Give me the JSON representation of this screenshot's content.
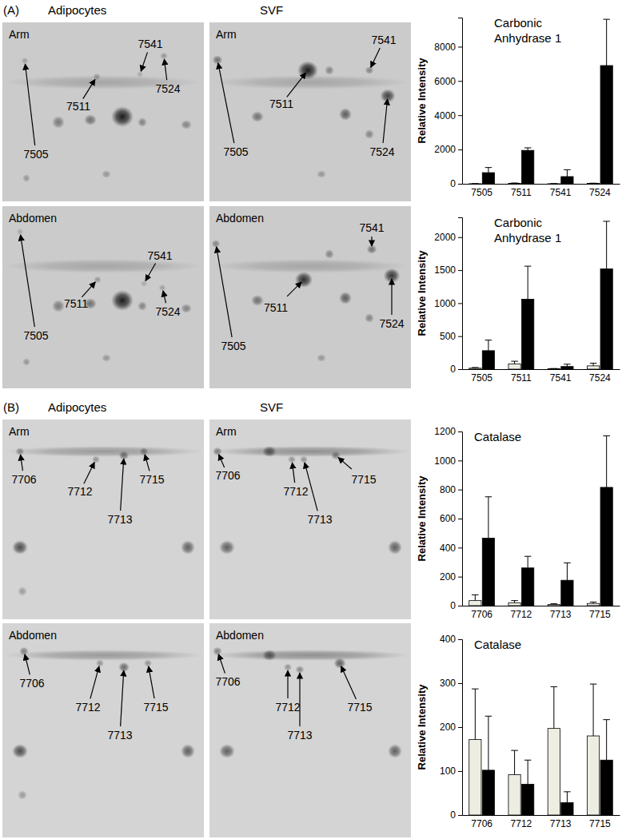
{
  "figure": {
    "panels": [
      {
        "label": "(A)",
        "columns": [
          "Adipocytes",
          "SVF"
        ],
        "rows": [
          "Arm",
          "Abdomen"
        ],
        "spots": [
          "7505",
          "7511",
          "7541",
          "7524"
        ]
      },
      {
        "label": "(B)",
        "columns": [
          "Adipocytes",
          "SVF"
        ],
        "rows": [
          "Arm",
          "Abdomen"
        ],
        "spots": [
          "7706",
          "7712",
          "7713",
          "7715"
        ]
      }
    ]
  },
  "chart_data": [
    {
      "type": "bar",
      "title": [
        "Carbonic",
        "Anhydrase 1"
      ],
      "y_label": "Relative Intensity",
      "categories": [
        "7505",
        "7511",
        "7541",
        "7524"
      ],
      "ylim": [
        0,
        9700
      ],
      "yticks": [
        0,
        2000,
        4000,
        6000,
        8000
      ],
      "series": [
        {
          "color": "#eeede2",
          "values": [
            5,
            30,
            5,
            20
          ],
          "errors": [
            5,
            15,
            5,
            15
          ]
        },
        {
          "color": "#000000",
          "values": [
            650,
            1950,
            420,
            6900
          ],
          "errors": [
            300,
            150,
            400,
            2700
          ]
        }
      ]
    },
    {
      "type": "bar",
      "title": [
        "Carbonic",
        "Anhydrase 1"
      ],
      "y_label": "Relative Intensity",
      "categories": [
        "7505",
        "7511",
        "7541",
        "7524"
      ],
      "ylim": [
        0,
        2300
      ],
      "yticks": [
        0,
        500,
        1000,
        1500,
        2000
      ],
      "series": [
        {
          "color": "#eeede2",
          "values": [
            15,
            80,
            5,
            50
          ],
          "errors": [
            10,
            40,
            5,
            40
          ]
        },
        {
          "color": "#000000",
          "values": [
            280,
            1060,
            40,
            1520
          ],
          "errors": [
            160,
            500,
            35,
            720
          ]
        }
      ]
    },
    {
      "type": "bar",
      "title": [
        "Catalase"
      ],
      "y_label": "Relative Intensity",
      "categories": [
        "7706",
        "7712",
        "7713",
        "7715"
      ],
      "ylim": [
        0,
        1200
      ],
      "yticks": [
        0,
        200,
        400,
        600,
        800,
        1000,
        1200
      ],
      "series": [
        {
          "color": "#eeede2",
          "values": [
            35,
            20,
            8,
            15
          ],
          "errors": [
            40,
            15,
            5,
            10
          ]
        },
        {
          "color": "#000000",
          "values": [
            465,
            260,
            175,
            815
          ],
          "errors": [
            285,
            80,
            120,
            355
          ]
        }
      ]
    },
    {
      "type": "bar",
      "title": [
        "Catalase"
      ],
      "y_label": "Relative Intensity",
      "categories": [
        "7706",
        "7712",
        "7713",
        "7715"
      ],
      "ylim": [
        0,
        400
      ],
      "yticks": [
        0,
        100,
        200,
        300,
        400
      ],
      "series": [
        {
          "color": "#eeede2",
          "values": [
            172,
            92,
            197,
            180
          ],
          "errors": [
            115,
            55,
            95,
            118
          ]
        },
        {
          "color": "#000000",
          "values": [
            102,
            70,
            28,
            125
          ],
          "errors": [
            123,
            55,
            25,
            92
          ]
        }
      ]
    }
  ]
}
